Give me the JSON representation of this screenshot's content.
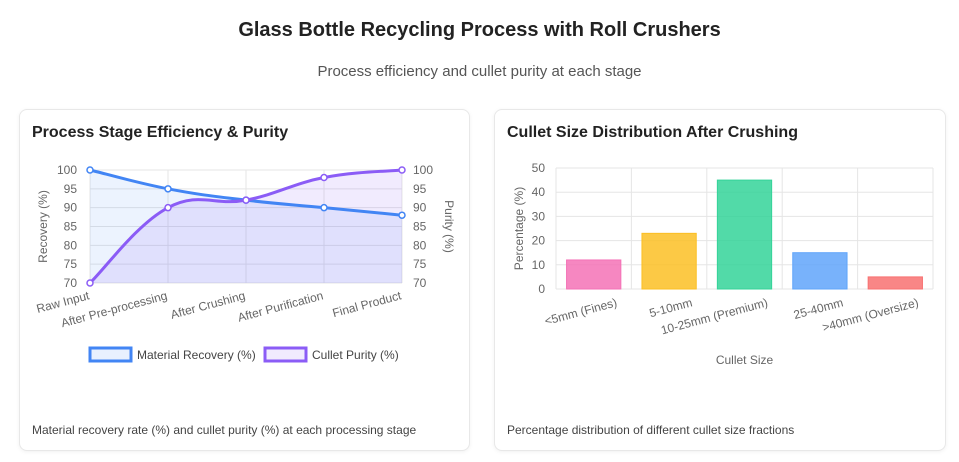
{
  "page": {
    "title": "Glass Bottle Recycling Process with Roll Crushers",
    "subtitle": "Process efficiency and cullet purity at each stage"
  },
  "colors": {
    "recovery": "#4285f4",
    "purity": "#8b5cf6",
    "grid": "#e5e5e5",
    "bars": [
      "#f472b6",
      "#fbbf24",
      "#34d399",
      "#60a5fa",
      "#f87171"
    ]
  },
  "chart_data": [
    {
      "type": "line",
      "title": "Process Stage Efficiency & Purity",
      "caption": "Material recovery rate (%) and cullet purity (%) at each processing stage",
      "categories": [
        "Raw Input",
        "After Pre-processing",
        "After Crushing",
        "After Purification",
        "Final Product"
      ],
      "series": [
        {
          "name": "Material Recovery (%)",
          "values": [
            100,
            95,
            92,
            90,
            88
          ],
          "axis": "left"
        },
        {
          "name": "Cullet Purity (%)",
          "values": [
            70,
            90,
            92,
            98,
            100
          ],
          "axis": "right"
        }
      ],
      "ylabel": "Recovery (%)",
      "y2label": "Purity (%)",
      "ylim": [
        70,
        100
      ],
      "y2lim": [
        70,
        100
      ],
      "yticks": [
        70,
        75,
        80,
        85,
        90,
        95,
        100
      ],
      "legend": "bottom",
      "grid": true
    },
    {
      "type": "bar",
      "title": "Cullet Size Distribution After Crushing",
      "caption": "Percentage distribution of different cullet size fractions",
      "categories": [
        "<5mm (Fines)",
        "5-10mm",
        "10-25mm (Premium)",
        "25-40mm",
        ">40mm (Oversize)"
      ],
      "values": [
        12,
        23,
        45,
        15,
        5
      ],
      "xlabel": "Cullet Size",
      "ylabel": "Percentage (%)",
      "ylim": [
        0,
        50
      ],
      "yticks": [
        0,
        10,
        20,
        30,
        40,
        50
      ],
      "grid": true
    }
  ]
}
